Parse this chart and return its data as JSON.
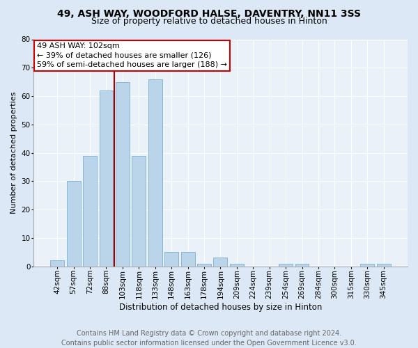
{
  "title1": "49, ASH WAY, WOODFORD HALSE, DAVENTRY, NN11 3SS",
  "title2": "Size of property relative to detached houses in Hinton",
  "xlabel": "Distribution of detached houses by size in Hinton",
  "ylabel": "Number of detached properties",
  "bar_labels": [
    "42sqm",
    "57sqm",
    "72sqm",
    "88sqm",
    "103sqm",
    "118sqm",
    "133sqm",
    "148sqm",
    "163sqm",
    "178sqm",
    "194sqm",
    "209sqm",
    "224sqm",
    "239sqm",
    "254sqm",
    "269sqm",
    "284sqm",
    "300sqm",
    "315sqm",
    "330sqm",
    "345sqm"
  ],
  "bar_values": [
    2,
    30,
    39,
    62,
    65,
    39,
    66,
    5,
    5,
    1,
    3,
    1,
    0,
    0,
    1,
    1,
    0,
    0,
    0,
    1,
    1
  ],
  "bar_color": "#bad4ea",
  "bar_edgecolor": "#7aafd4",
  "annotation_text_line1": "49 ASH WAY: 102sqm",
  "annotation_text_line2": "← 39% of detached houses are smaller (126)",
  "annotation_text_line3": "59% of semi-detached houses are larger (188) →",
  "annotation_box_color": "#ffffff",
  "annotation_box_edgecolor": "#cc0000",
  "vline_color": "#aa0000",
  "vline_x": 3.5,
  "ylim": [
    0,
    80
  ],
  "yticks": [
    0,
    10,
    20,
    30,
    40,
    50,
    60,
    70,
    80
  ],
  "footer": "Contains HM Land Registry data © Crown copyright and database right 2024.\nContains public sector information licensed under the Open Government Licence v3.0.",
  "bg_color": "#dce8f5",
  "plot_bg_color": "#eaf1f8",
  "title1_fontsize": 10,
  "title2_fontsize": 9,
  "xlabel_fontsize": 8.5,
  "ylabel_fontsize": 8,
  "tick_fontsize": 7.5,
  "annotation_fontsize": 8,
  "footer_fontsize": 7
}
